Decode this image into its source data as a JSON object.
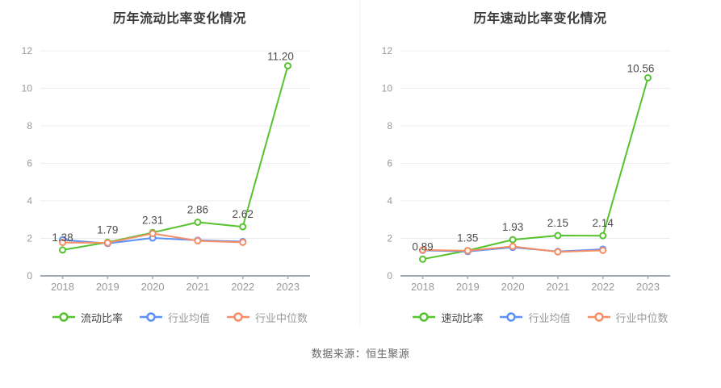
{
  "page": {
    "source_note": "数据来源：恒生聚源"
  },
  "colors": {
    "main_series": "#55c32d",
    "industry_mean": "#5b8ff9",
    "industry_median": "#f78d64",
    "grid": "#e8ecf4",
    "axis": "#a3a9b1",
    "tick_label": "#999999",
    "data_label": "#4d4d4d",
    "title": "#3b3b3b",
    "legend_main": "#444444",
    "legend_secondary": "#999999"
  },
  "chart_data": [
    {
      "type": "line",
      "title": "历年流动比率变化情况",
      "categories": [
        "2018",
        "2019",
        "2020",
        "2021",
        "2022",
        "2023"
      ],
      "ylim": [
        0,
        12
      ],
      "yticks": [
        0,
        2,
        4,
        6,
        8,
        10,
        12
      ],
      "grid": true,
      "legend_position": "bottom",
      "series": [
        {
          "name": "流动比率",
          "color_key": "main_series",
          "values": [
            1.38,
            1.79,
            2.31,
            2.86,
            2.62,
            11.2
          ],
          "labels": [
            "1.38",
            "1.79",
            "2.31",
            "2.86",
            "2.62",
            "11.20"
          ]
        },
        {
          "name": "行业均值",
          "color_key": "industry_mean",
          "values": [
            1.92,
            1.73,
            2.02,
            1.9,
            1.83,
            null
          ]
        },
        {
          "name": "行业中位数",
          "color_key": "industry_median",
          "values": [
            1.78,
            1.76,
            2.26,
            1.87,
            1.79,
            null
          ]
        }
      ]
    },
    {
      "type": "line",
      "title": "历年速动比率变化情况",
      "categories": [
        "2018",
        "2019",
        "2020",
        "2021",
        "2022",
        "2023"
      ],
      "ylim": [
        0,
        12
      ],
      "yticks": [
        0,
        2,
        4,
        6,
        8,
        10,
        12
      ],
      "grid": true,
      "legend_position": "bottom",
      "series": [
        {
          "name": "速动比率",
          "color_key": "main_series",
          "values": [
            0.89,
            1.35,
            1.93,
            2.15,
            2.14,
            10.56
          ],
          "labels": [
            "0.89",
            "1.35",
            "1.93",
            "2.15",
            "2.14",
            "10.56"
          ]
        },
        {
          "name": "行业均值",
          "color_key": "industry_mean",
          "values": [
            1.36,
            1.3,
            1.52,
            1.3,
            1.42,
            null
          ]
        },
        {
          "name": "行业中位数",
          "color_key": "industry_median",
          "values": [
            1.38,
            1.34,
            1.57,
            1.28,
            1.36,
            null
          ]
        }
      ]
    }
  ]
}
